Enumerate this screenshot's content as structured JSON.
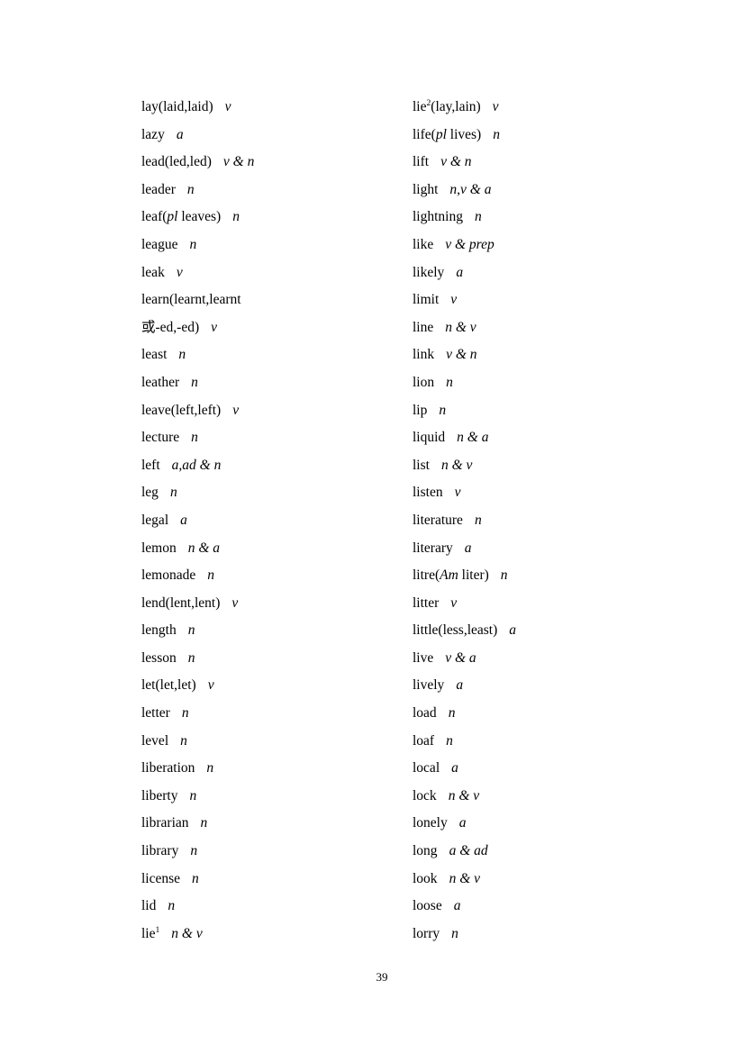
{
  "page": {
    "number": "39"
  },
  "columns": {
    "left": [
      {
        "word": [
          {
            "t": "lay(laid,laid)"
          }
        ],
        "pos": "v"
      },
      {
        "word": [
          {
            "t": "lazy"
          }
        ],
        "pos": "a"
      },
      {
        "word": [
          {
            "t": "lead(led,led)"
          }
        ],
        "pos": "v & n"
      },
      {
        "word": [
          {
            "t": "leader"
          }
        ],
        "pos": "n"
      },
      {
        "word": [
          {
            "t": "leaf("
          },
          {
            "t": "pl",
            "s": "i"
          },
          {
            "t": " leaves)"
          }
        ],
        "pos": "n"
      },
      {
        "word": [
          {
            "t": "league"
          }
        ],
        "pos": "n"
      },
      {
        "word": [
          {
            "t": "leak"
          }
        ],
        "pos": "v"
      },
      {
        "word": [
          {
            "t": "learn(learnt,learnt"
          }
        ],
        "pos": ""
      },
      {
        "word": [
          {
            "t": "或-ed,-ed)"
          }
        ],
        "pos": "v"
      },
      {
        "word": [
          {
            "t": "least"
          }
        ],
        "pos": "n"
      },
      {
        "word": [
          {
            "t": "leather"
          }
        ],
        "pos": "n"
      },
      {
        "word": [
          {
            "t": "leave(left,left)"
          }
        ],
        "pos": "v"
      },
      {
        "word": [
          {
            "t": "lecture"
          }
        ],
        "pos": "n"
      },
      {
        "word": [
          {
            "t": "left"
          }
        ],
        "pos": "a,ad & n"
      },
      {
        "word": [
          {
            "t": "leg"
          }
        ],
        "pos": "n"
      },
      {
        "word": [
          {
            "t": "legal"
          }
        ],
        "pos": "a"
      },
      {
        "word": [
          {
            "t": "lemon"
          }
        ],
        "pos": "n & a"
      },
      {
        "word": [
          {
            "t": "lemonade"
          }
        ],
        "pos": "n"
      },
      {
        "word": [
          {
            "t": "lend(lent,lent)"
          }
        ],
        "pos": "v"
      },
      {
        "word": [
          {
            "t": "length"
          }
        ],
        "pos": "n"
      },
      {
        "word": [
          {
            "t": "lesson"
          }
        ],
        "pos": "n"
      },
      {
        "word": [
          {
            "t": "let(let,let)"
          }
        ],
        "pos": "v"
      },
      {
        "word": [
          {
            "t": "letter"
          }
        ],
        "pos": "n"
      },
      {
        "word": [
          {
            "t": "level"
          }
        ],
        "pos": "n"
      },
      {
        "word": [
          {
            "t": "liberation"
          }
        ],
        "pos": "n"
      },
      {
        "word": [
          {
            "t": "liberty"
          }
        ],
        "pos": "n"
      },
      {
        "word": [
          {
            "t": "librarian"
          }
        ],
        "pos": "n"
      },
      {
        "word": [
          {
            "t": "library"
          }
        ],
        "pos": "n"
      },
      {
        "word": [
          {
            "t": "license"
          }
        ],
        "pos": "n"
      },
      {
        "word": [
          {
            "t": "lid"
          }
        ],
        "pos": "n"
      },
      {
        "word": [
          {
            "t": "lie"
          },
          {
            "t": "1",
            "s": "sup"
          }
        ],
        "pos": "n & v"
      }
    ],
    "right": [
      {
        "word": [
          {
            "t": "lie"
          },
          {
            "t": "2",
            "s": "sup"
          },
          {
            "t": "(lay,lain)"
          }
        ],
        "pos": "v"
      },
      {
        "word": [
          {
            "t": "life("
          },
          {
            "t": "pl",
            "s": "i"
          },
          {
            "t": " lives)"
          }
        ],
        "pos": "n"
      },
      {
        "word": [
          {
            "t": "lift"
          }
        ],
        "pos": "v & n"
      },
      {
        "word": [
          {
            "t": "light"
          }
        ],
        "pos": "n,v & a"
      },
      {
        "word": [
          {
            "t": "lightning"
          }
        ],
        "pos": "n"
      },
      {
        "word": [
          {
            "t": "like"
          }
        ],
        "pos": "v & prep"
      },
      {
        "word": [
          {
            "t": "likely"
          }
        ],
        "pos": "a"
      },
      {
        "word": [
          {
            "t": "limit"
          }
        ],
        "pos": "v"
      },
      {
        "word": [
          {
            "t": "line"
          }
        ],
        "pos": "n & v"
      },
      {
        "word": [
          {
            "t": "link"
          }
        ],
        "pos": "v & n"
      },
      {
        "word": [
          {
            "t": "lion"
          }
        ],
        "pos": "n"
      },
      {
        "word": [
          {
            "t": "lip"
          }
        ],
        "pos": "n"
      },
      {
        "word": [
          {
            "t": "liquid"
          }
        ],
        "pos": "n & a"
      },
      {
        "word": [
          {
            "t": "list"
          }
        ],
        "pos": "n & v"
      },
      {
        "word": [
          {
            "t": "listen"
          }
        ],
        "pos": "v"
      },
      {
        "word": [
          {
            "t": "literature"
          }
        ],
        "pos": "n"
      },
      {
        "word": [
          {
            "t": "literary"
          }
        ],
        "pos": "a"
      },
      {
        "word": [
          {
            "t": "litre("
          },
          {
            "t": "Am",
            "s": "i"
          },
          {
            "t": " liter)"
          }
        ],
        "pos": "n"
      },
      {
        "word": [
          {
            "t": "litter"
          }
        ],
        "pos": "v"
      },
      {
        "word": [
          {
            "t": "little(less,least)"
          }
        ],
        "pos": "a"
      },
      {
        "word": [
          {
            "t": "live"
          }
        ],
        "pos": "v & a"
      },
      {
        "word": [
          {
            "t": "lively"
          }
        ],
        "pos": "a"
      },
      {
        "word": [
          {
            "t": "load"
          }
        ],
        "pos": "n"
      },
      {
        "word": [
          {
            "t": "loaf"
          }
        ],
        "pos": "n"
      },
      {
        "word": [
          {
            "t": "local"
          }
        ],
        "pos": "a"
      },
      {
        "word": [
          {
            "t": "lock"
          }
        ],
        "pos": "n & v"
      },
      {
        "word": [
          {
            "t": "lonely"
          }
        ],
        "pos": "a"
      },
      {
        "word": [
          {
            "t": "long"
          }
        ],
        "pos": "a & ad"
      },
      {
        "word": [
          {
            "t": "look"
          }
        ],
        "pos": "n & v"
      },
      {
        "word": [
          {
            "t": "loose"
          }
        ],
        "pos": "a"
      },
      {
        "word": [
          {
            "t": "lorry"
          }
        ],
        "pos": "n"
      }
    ]
  }
}
